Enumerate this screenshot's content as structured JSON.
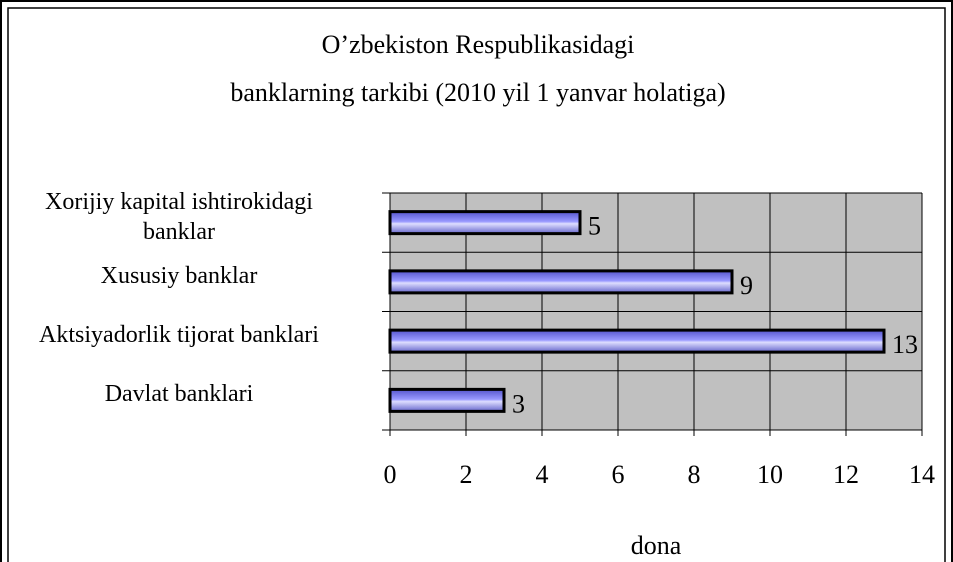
{
  "chart_data": {
    "type": "barh",
    "title": [
      "O’zbekiston Respublikasidagi",
      "banklarning tarkibi (2010 yil 1 yanvar holatiga)"
    ],
    "categories": [
      "Xorijiy kapital ishtirokidagi banklar",
      "Xususiy banklar",
      "Aktsiyadorlik tijorat banklari",
      "Davlat banklari"
    ],
    "values": [
      5,
      9,
      13,
      3
    ],
    "color": "#9999ff",
    "xlabel": "dona",
    "xlim": [
      0,
      14
    ],
    "xticks": [
      0,
      2,
      4,
      6,
      8,
      10,
      12,
      14
    ],
    "grid": true
  }
}
